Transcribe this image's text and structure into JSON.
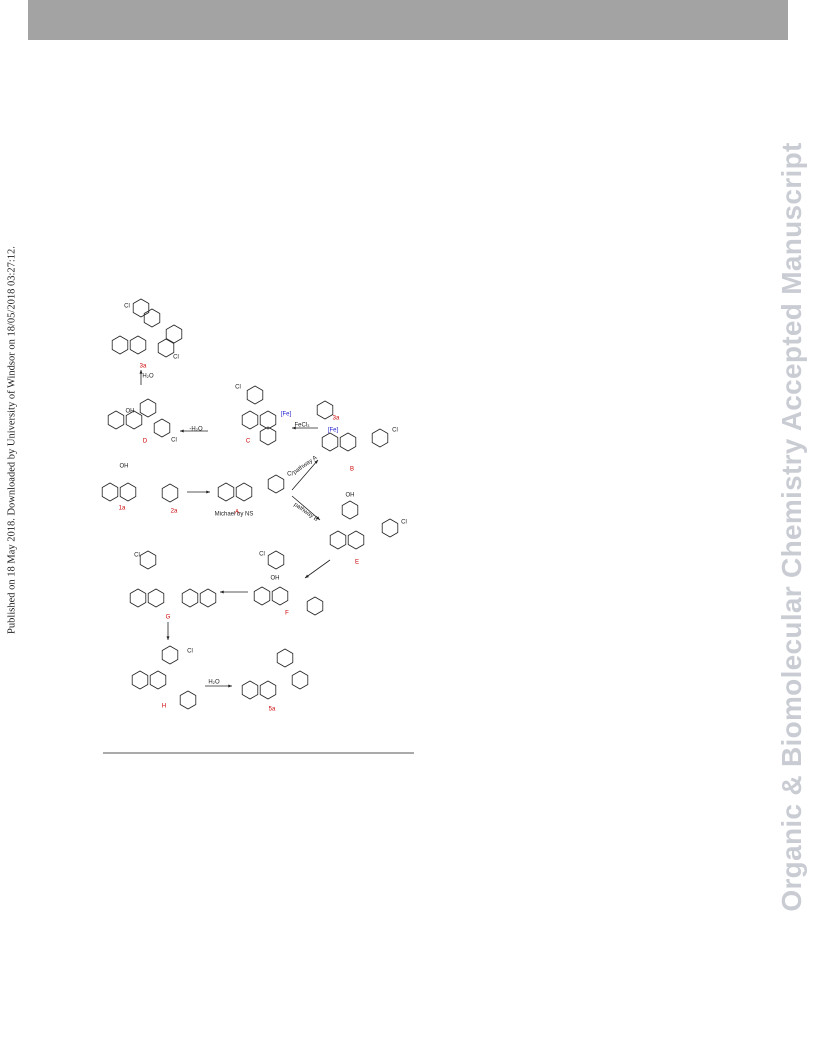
{
  "side_note": "Published on 18 May 2018. Downloaded by University of Windsor on 18/05/2018 03:27:12.",
  "watermark": "Organic & Biomolecular Chemistry Accepted Manuscript",
  "scheme": {
    "labels": [
      "3a",
      "H₂O",
      "D",
      "-H₂O",
      "C",
      "FeCl₃",
      "[Fe]",
      "3a",
      "[Fe]",
      "B",
      "1a",
      "2a",
      "Michael by NS",
      "A",
      "pathway A",
      "pathway B",
      "E",
      "F",
      "G",
      "H",
      "H₂O",
      "5a",
      "OH",
      "OH",
      "OH",
      "OH",
      "Cl",
      "Cl",
      "Cl",
      "Cl",
      "Cl",
      "Cl",
      "Cl",
      "Cl",
      "Cl",
      "Cl"
    ]
  }
}
